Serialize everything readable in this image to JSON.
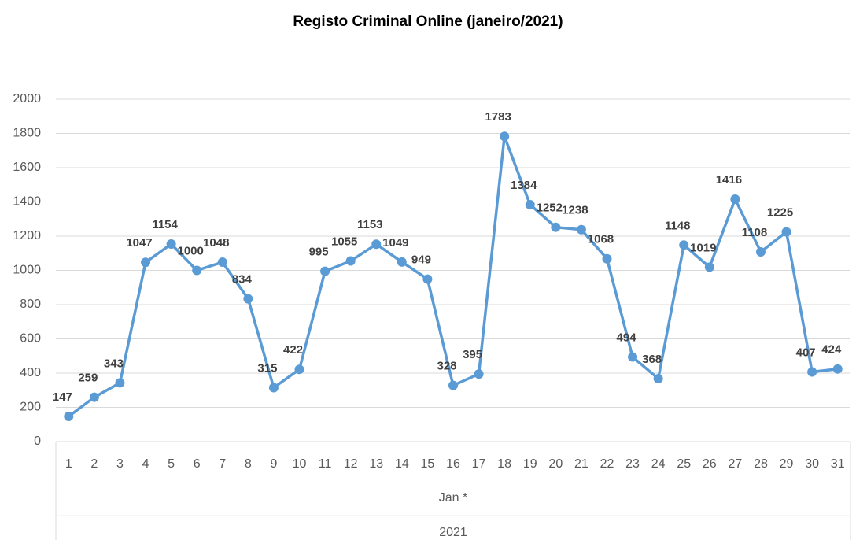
{
  "chart_data": {
    "type": "line",
    "title": "Registo Criminal Online (janeiro/2021)",
    "categories": [
      "1",
      "2",
      "3",
      "4",
      "5",
      "6",
      "7",
      "8",
      "9",
      "10",
      "11",
      "12",
      "13",
      "14",
      "15",
      "16",
      "17",
      "18",
      "19",
      "20",
      "21",
      "22",
      "23",
      "24",
      "25",
      "26",
      "27",
      "28",
      "29",
      "30",
      "31"
    ],
    "category_groups": [
      "Jan *",
      "2021"
    ],
    "values": [
      147,
      259,
      343,
      1047,
      1154,
      1000,
      1048,
      834,
      315,
      422,
      995,
      1055,
      1153,
      1049,
      949,
      328,
      395,
      1783,
      1384,
      1252,
      1238,
      1068,
      494,
      368,
      1148,
      1019,
      1416,
      1108,
      1225,
      407,
      424
    ],
    "color": "#5b9bd5",
    "ylim": [
      0,
      2000
    ],
    "yticks": [
      0,
      200,
      400,
      600,
      800,
      1000,
      1200,
      1400,
      1600,
      1800,
      2000
    ],
    "grid": true
  }
}
